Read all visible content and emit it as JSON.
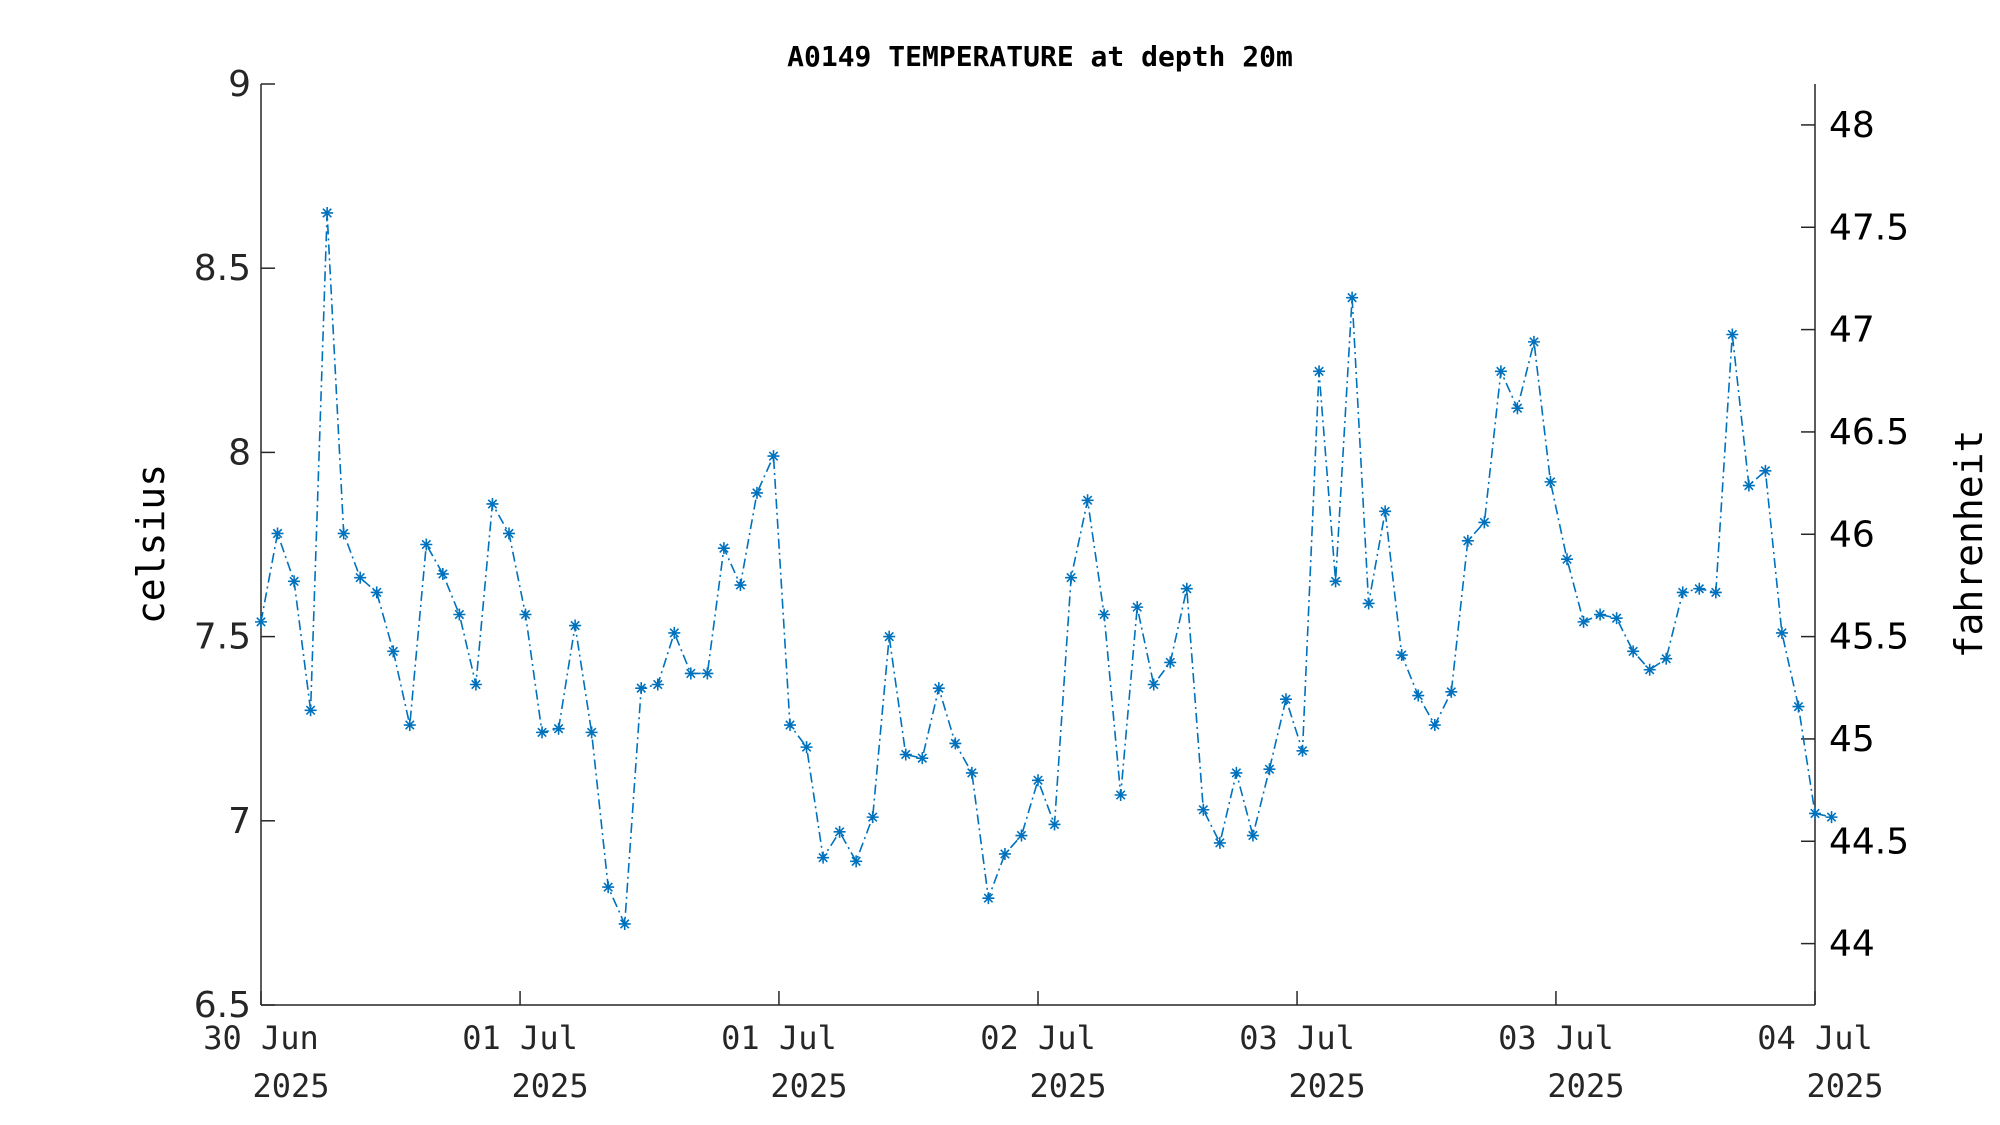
{
  "chart_data": {
    "type": "line",
    "title": "A0149 TEMPERATURE at depth 20m",
    "ylabel": "celsius",
    "y2label": "fahrenheit",
    "xlabel": "",
    "ylim": [
      6.5,
      9
    ],
    "y2lim": [
      43.7,
      48.2
    ],
    "xlim": [
      0,
      94
    ],
    "yticks": [
      6.5,
      7,
      7.5,
      8,
      8.5,
      9
    ],
    "y2ticks": [
      44,
      44.5,
      45,
      45.5,
      46,
      46.5,
      47,
      47.5,
      48
    ],
    "xticks": [
      {
        "x": 0,
        "line1": "30 Jun",
        "line2": "2025"
      },
      {
        "x": 15.67,
        "line1": "01 Jul",
        "line2": "2025"
      },
      {
        "x": 31.33,
        "line1": "01 Jul",
        "line2": "2025"
      },
      {
        "x": 47,
        "line1": "02 Jul",
        "line2": "2025"
      },
      {
        "x": 62.67,
        "line1": "03 Jul",
        "line2": "2025"
      },
      {
        "x": 78.33,
        "line1": "03 Jul",
        "line2": "2025"
      },
      {
        "x": 94,
        "line1": "04 Jul",
        "line2": "2025"
      }
    ],
    "grid": false,
    "series": [
      {
        "name": "",
        "color": "#0072BD",
        "marker": "asterisk",
        "line_style": "dash-dot",
        "values": [
          7.54,
          7.78,
          7.65,
          7.3,
          8.65,
          7.78,
          7.66,
          7.62,
          7.46,
          7.26,
          7.75,
          7.67,
          7.56,
          7.37,
          7.86,
          7.78,
          7.56,
          7.24,
          7.25,
          7.53,
          7.24,
          6.82,
          6.72,
          7.36,
          7.37,
          7.51,
          7.4,
          7.4,
          7.74,
          7.64,
          7.89,
          7.99,
          7.26,
          7.2,
          6.9,
          6.97,
          6.89,
          7.01,
          7.5,
          7.18,
          7.17,
          7.36,
          7.21,
          7.13,
          6.79,
          6.91,
          6.96,
          7.11,
          6.99,
          7.66,
          7.87,
          7.56,
          7.07,
          7.58,
          7.37,
          7.43,
          7.63,
          7.03,
          6.94,
          7.13,
          6.96,
          7.14,
          7.33,
          7.19,
          8.22,
          7.65,
          8.42,
          7.59,
          7.84,
          7.45,
          7.34,
          7.26,
          7.35,
          7.76,
          7.81,
          8.22,
          8.12,
          8.3,
          7.92,
          7.71,
          7.54,
          7.56,
          7.55,
          7.46,
          7.41,
          7.44,
          7.62,
          7.63,
          7.62,
          8.32,
          7.91,
          7.95,
          7.51,
          7.31,
          7.02,
          7.01
        ]
      }
    ]
  }
}
